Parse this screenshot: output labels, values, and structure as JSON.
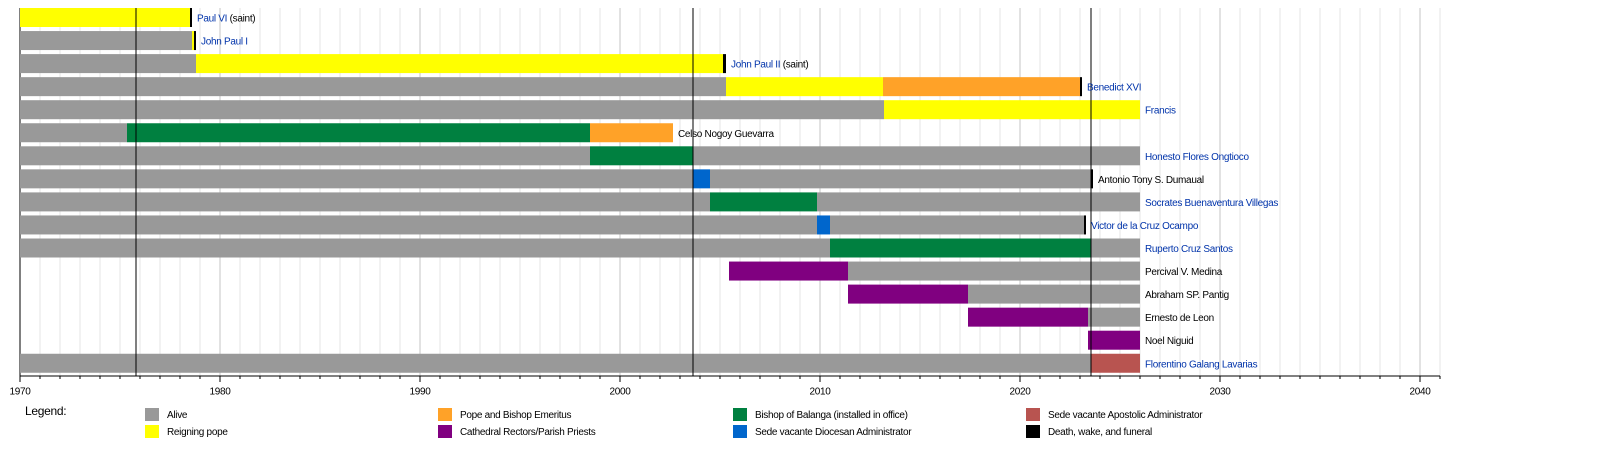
{
  "chart_data": {
    "type": "timeline",
    "xlim": [
      1970,
      2041
    ],
    "xticks": [
      1970,
      1980,
      1990,
      2000,
      2010,
      2020,
      2030,
      2040
    ],
    "minor_grid_step": 1,
    "markers": [
      1975.8,
      2003.65,
      2023.55
    ],
    "legend_title": "Legend:",
    "rows": [
      {
        "label": "Paul VI",
        "note": "(saint)",
        "link": true
      },
      {
        "label": "John Paul I",
        "link": true
      },
      {
        "label": "John Paul II",
        "note": "(saint)",
        "link": true
      },
      {
        "label": "Benedict XVI",
        "link": true
      },
      {
        "label": "Francis",
        "link": true
      },
      {
        "label": "Celso Nogoy Guevarra",
        "link": false
      },
      {
        "label": "Honesto Flores Ongtioco",
        "link": true
      },
      {
        "label": "Antonio Tony S. Dumaual",
        "link": false
      },
      {
        "label": "Socrates Buenaventura Villegas",
        "link": true
      },
      {
        "label": "Victor de la Cruz Ocampo",
        "link": true
      },
      {
        "label": "Ruperto Cruz Santos",
        "link": true
      },
      {
        "label": "Percival V. Medina",
        "link": false
      },
      {
        "label": "Abraham SP. Pantig",
        "link": false
      },
      {
        "label": "Ernesto de Leon",
        "link": false
      },
      {
        "label": "Noel Niguid",
        "link": false
      },
      {
        "label": "Florentino Galang Lavarias",
        "link": true
      }
    ],
    "series": [
      {
        "name": "Alive",
        "color": "#999999",
        "segments": [
          {
            "row": 1,
            "start": 1970,
            "end": 1978.6
          },
          {
            "row": 2,
            "start": 1970,
            "end": 1978.8
          },
          {
            "row": 3,
            "start": 1970,
            "end": 2005.3
          },
          {
            "row": 4,
            "start": 1970,
            "end": 2013.2
          },
          {
            "row": 5,
            "start": 1970,
            "end": 1975.35
          },
          {
            "row": 6,
            "start": 1970,
            "end": 1998.5
          },
          {
            "row": 6,
            "start": 2003.65,
            "end": 2026
          },
          {
            "row": 7,
            "start": 1970,
            "end": 2003.65
          },
          {
            "row": 7,
            "start": 2004.5,
            "end": 2023.55
          },
          {
            "row": 8,
            "start": 1970,
            "end": 2004.5
          },
          {
            "row": 8,
            "start": 2009.85,
            "end": 2026
          },
          {
            "row": 9,
            "start": 1970,
            "end": 2009.85
          },
          {
            "row": 9,
            "start": 2010.5,
            "end": 2023.2
          },
          {
            "row": 10,
            "start": 1970,
            "end": 2010.5
          },
          {
            "row": 10,
            "start": 2023.55,
            "end": 2026
          },
          {
            "row": 11,
            "start": 2011.4,
            "end": 2026
          },
          {
            "row": 12,
            "start": 2017.4,
            "end": 2026
          },
          {
            "row": 13,
            "start": 2023.4,
            "end": 2026
          },
          {
            "row": 15,
            "start": 1970,
            "end": 2023.55
          }
        ]
      },
      {
        "name": "Reigning pope",
        "color": "#ffff00",
        "segments": [
          {
            "row": 0,
            "start": 1970,
            "end": 1978.5
          },
          {
            "row": 1,
            "start": 1978.6,
            "end": 1978.7
          },
          {
            "row": 2,
            "start": 1978.8,
            "end": 2005.15
          },
          {
            "row": 3,
            "start": 2005.3,
            "end": 2013.15
          },
          {
            "row": 4,
            "start": 2013.2,
            "end": 2026
          }
        ]
      },
      {
        "name": "Pope and Bishop Emeritus",
        "color": "#ffa228",
        "segments": [
          {
            "row": 3,
            "start": 2013.15,
            "end": 2023
          },
          {
            "row": 5,
            "start": 1998.5,
            "end": 2002.65
          }
        ]
      },
      {
        "name": "Cathedral Rectors/Parish Priests",
        "color": "#800080",
        "segments": [
          {
            "row": 11,
            "start": 2005.45,
            "end": 2011.4
          },
          {
            "row": 12,
            "start": 2011.4,
            "end": 2017.4
          },
          {
            "row": 13,
            "start": 2017.4,
            "end": 2023.4
          },
          {
            "row": 14,
            "start": 2023.4,
            "end": 2026
          }
        ]
      },
      {
        "name": "Bishop of Balanga (installed in office)",
        "color": "#008040",
        "segments": [
          {
            "row": 5,
            "start": 1975.35,
            "end": 1998.5
          },
          {
            "row": 6,
            "start": 1998.5,
            "end": 2003.65
          },
          {
            "row": 8,
            "start": 2004.5,
            "end": 2009.85
          },
          {
            "row": 10,
            "start": 2010.5,
            "end": 2023.55
          }
        ]
      },
      {
        "name": "Sede vacante Diocesan Administrator",
        "color": "#0066cc",
        "segments": [
          {
            "row": 7,
            "start": 2003.65,
            "end": 2004.5
          },
          {
            "row": 9,
            "start": 2009.85,
            "end": 2010.5
          }
        ]
      },
      {
        "name": "Sede vacante Apostolic Administrator",
        "color": "#b85450",
        "segments": [
          {
            "row": 15,
            "start": 2023.55,
            "end": 2026
          }
        ]
      },
      {
        "name": "Death, wake, and funeral",
        "color": "#000000",
        "segments": [
          {
            "row": 0,
            "start": 1978.5,
            "end": 1978.6
          },
          {
            "row": 1,
            "start": 1978.7,
            "end": 1978.8
          },
          {
            "row": 2,
            "start": 2005.15,
            "end": 2005.3
          },
          {
            "row": 3,
            "start": 2023,
            "end": 2023.1
          },
          {
            "row": 7,
            "start": 2023.55,
            "end": 2023.65
          },
          {
            "row": 9,
            "start": 2023.2,
            "end": 2023.3
          }
        ]
      }
    ]
  }
}
